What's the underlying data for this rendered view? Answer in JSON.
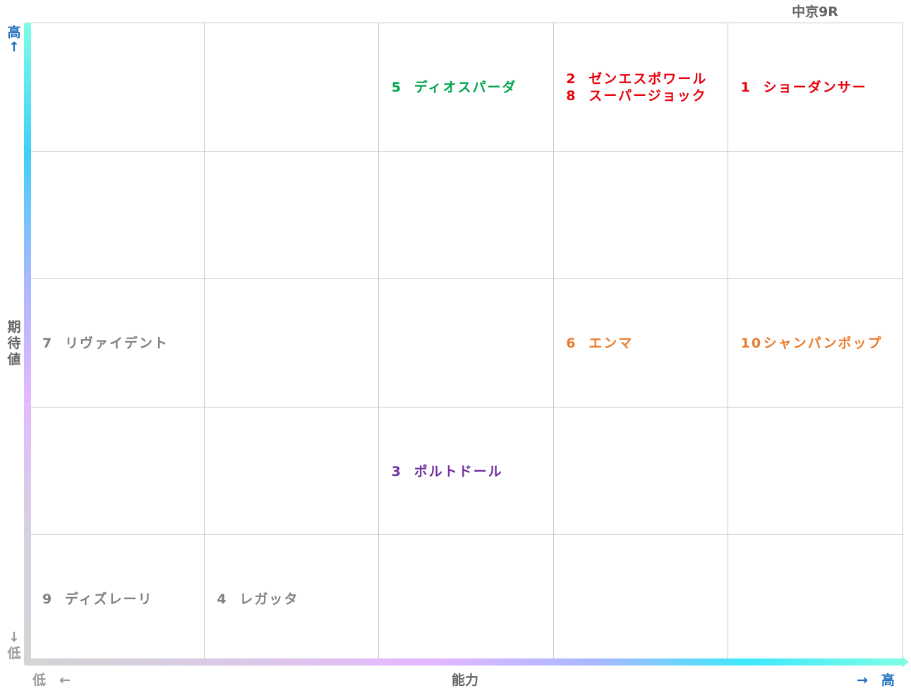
{
  "chart_data": {
    "type": "table",
    "title": "中京9R",
    "xlabel": "能力",
    "ylabel": "期待値",
    "x_low": "低　←",
    "x_high": "→　高",
    "y_high_char": "高",
    "y_high_arrow": "↑",
    "y_low_arrow": "↓",
    "y_low_char": "低",
    "ylabel_chars": [
      "期",
      "待",
      "値"
    ],
    "columns": 5,
    "rows": 5,
    "colors": {
      "red": "#e8000b",
      "green": "#00a550",
      "orange": "#e87d2e",
      "purple": "#7030a0",
      "gray": "#808080",
      "axis_label_blue": "#1f6fbf",
      "axis_label_gray": "#999999"
    },
    "entries": [
      {
        "number": "5",
        "name": "ディオスパーダ",
        "col": 3,
        "row": 5,
        "color": "#00a550"
      },
      {
        "number": "2",
        "name": "ゼンエスポワール",
        "col": 4,
        "row": 5,
        "color": "#e8000b"
      },
      {
        "number": "8",
        "name": "スーパージョック",
        "col": 4,
        "row": 5,
        "color": "#e8000b"
      },
      {
        "number": "1",
        "name": "ショーダンサー",
        "col": 5,
        "row": 5,
        "color": "#e8000b"
      },
      {
        "number": "7",
        "name": "リヴァイデント",
        "col": 1,
        "row": 3,
        "color": "#808080"
      },
      {
        "number": "6",
        "name": "エンマ",
        "col": 4,
        "row": 3,
        "color": "#e87d2e"
      },
      {
        "number": "10",
        "name": "シャンパンポップ",
        "col": 5,
        "row": 3,
        "color": "#e87d2e"
      },
      {
        "number": "3",
        "name": "ポルトドール",
        "col": 3,
        "row": 2,
        "color": "#7030a0"
      },
      {
        "number": "9",
        "name": "ディズレーリ",
        "col": 1,
        "row": 1,
        "color": "#808080"
      },
      {
        "number": "4",
        "name": "レガッタ",
        "col": 2,
        "row": 1,
        "color": "#808080"
      }
    ]
  }
}
